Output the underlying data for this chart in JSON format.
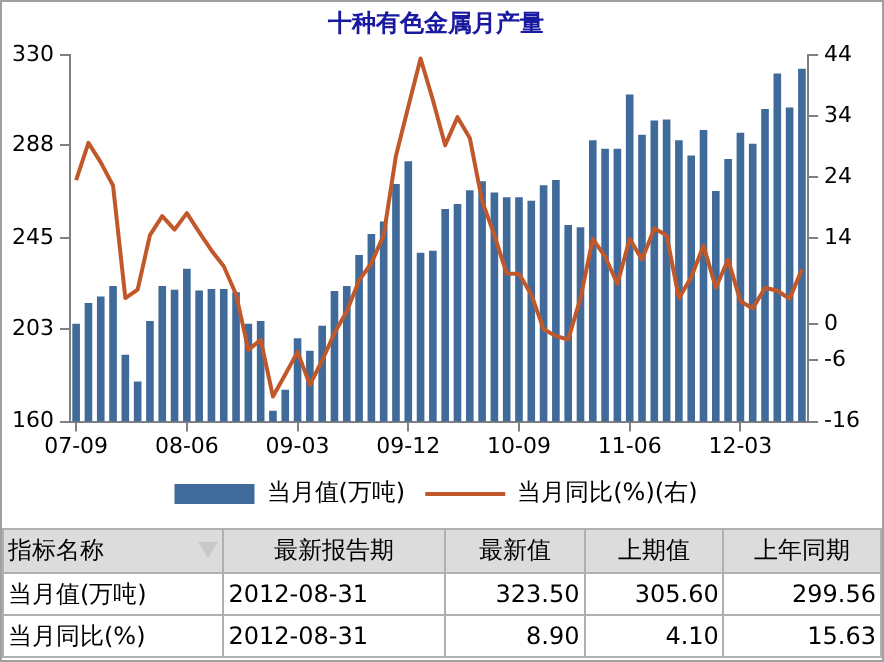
{
  "chart_data": [
    {
      "type": "bar",
      "title": "十种有色金属月产量",
      "categories": [
        "07-09",
        null,
        null,
        null,
        null,
        null,
        null,
        null,
        null,
        "08-06",
        null,
        null,
        null,
        null,
        null,
        null,
        null,
        null,
        "09-03",
        null,
        null,
        null,
        null,
        null,
        null,
        null,
        null,
        "09-12",
        null,
        null,
        null,
        null,
        null,
        null,
        null,
        null,
        "10-09",
        null,
        null,
        null,
        null,
        null,
        null,
        null,
        null,
        "11-06",
        null,
        null,
        null,
        null,
        null,
        null,
        null,
        null,
        "12-03",
        null,
        null,
        null,
        null,
        null
      ],
      "series": [
        {
          "name": "当月值(万吨)",
          "type": "bar",
          "color": "#3f6a9a",
          "values": [
            205.4,
            215,
            218,
            222.8,
            191,
            178.6,
            206.6,
            222.8,
            221.1,
            230.8,
            220.8,
            221.5,
            221.5,
            219.9,
            205.4,
            206.6,
            165,
            174.8,
            198.6,
            192.8,
            204.4,
            220.5,
            222.8,
            237.2,
            246.9,
            252.7,
            270.1,
            280.7,
            238.2,
            239.2,
            258.5,
            260.8,
            267.2,
            271.4,
            266.2,
            264,
            264,
            262.4,
            269.5,
            272,
            251.1,
            250.1,
            290.4,
            286.5,
            286.5,
            311.6,
            293,
            299.6,
            300,
            290.4,
            283.3,
            295.2,
            266.9,
            281.7,
            293.9,
            288.8,
            304.9,
            321.3,
            305.6,
            323.5
          ]
        },
        {
          "name": "当月同比(%)(右)",
          "type": "line",
          "axis": "y2",
          "color": "#c0582a",
          "values": [
            23.5,
            29.6,
            26.4,
            22.6,
            4.2,
            5.6,
            14.5,
            17.6,
            15.4,
            18.1,
            15,
            12,
            9.4,
            4.8,
            -4.3,
            -2.6,
            -11.9,
            -8.3,
            -4.6,
            -10,
            -6,
            -1.5,
            2,
            7.1,
            9.9,
            14.5,
            27.5,
            35.5,
            43.4,
            36.6,
            29.2,
            33.8,
            30.4,
            20.1,
            14.5,
            8.2,
            8.2,
            4.8,
            -0.9,
            -2,
            -2.6,
            4.2,
            13.9,
            11,
            6.5,
            13.9,
            10.5,
            15.6,
            14.5,
            4.2,
            7.6,
            12.8,
            5.9,
            10.5,
            3.7,
            2.5,
            5.9,
            5.4,
            4.1,
            8.9
          ]
        }
      ],
      "ylim": [
        160,
        330
      ],
      "yticks": [
        160,
        203,
        245,
        288,
        330
      ],
      "y2lim": [
        -16,
        44
      ],
      "y2ticks": [
        -16,
        -6,
        0,
        14,
        24,
        34,
        44
      ],
      "grid": false,
      "legend": "bottom",
      "marker": "none",
      "line_style": "solid"
    },
    {
      "type": "other",
      "categories": [
        "指标名称",
        "最新报告期",
        "最新值",
        "上期值",
        "上年同期"
      ],
      "y_categories": [
        "当月值(万吨)",
        "当月同比(%)"
      ],
      "cell_labels": [
        [
          "2012-08-31",
          "323.50",
          "305.60",
          "299.56"
        ],
        [
          "2012-08-31",
          "8.90",
          "4.10",
          "15.63"
        ]
      ]
    }
  ]
}
